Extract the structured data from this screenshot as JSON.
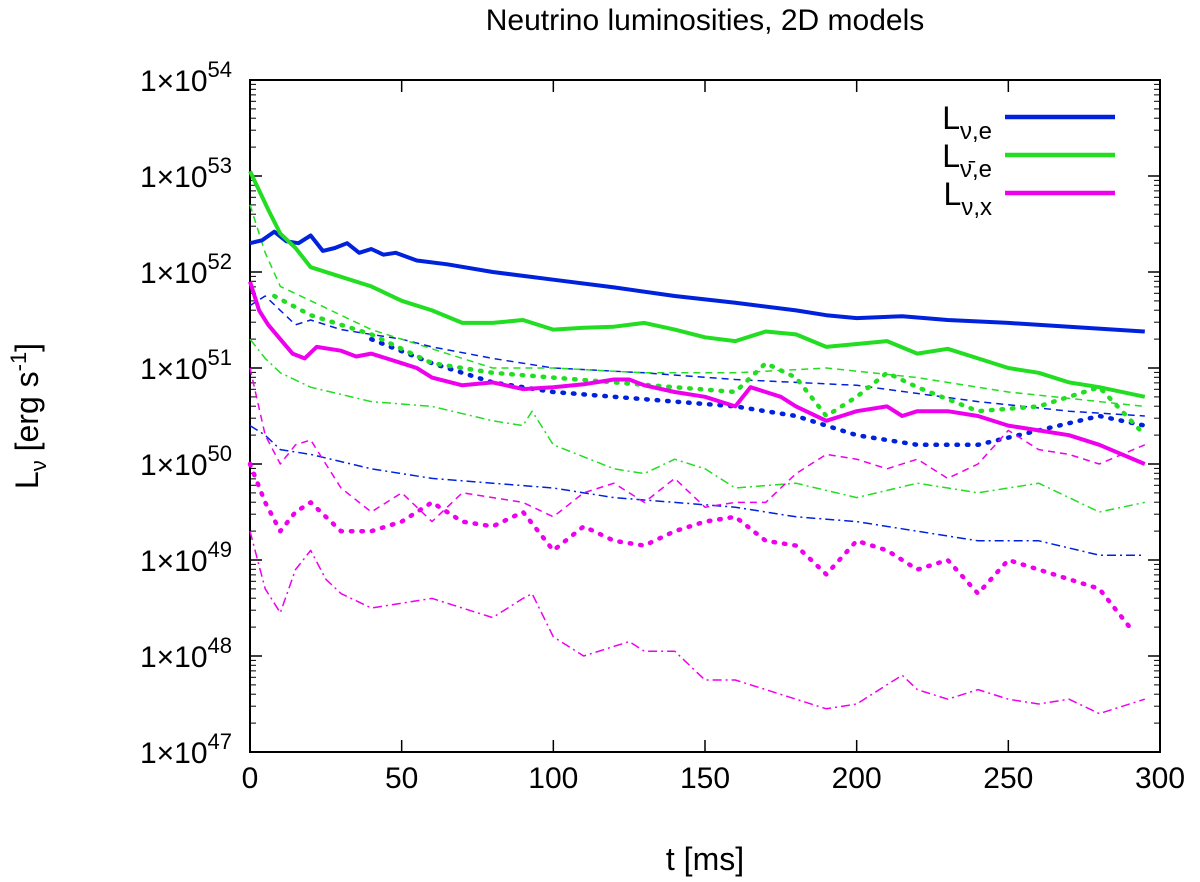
{
  "chart_data": {
    "type": "line",
    "title": "Neutrino luminosities, 2D models",
    "xlabel": "t [ms]",
    "ylabel": "L_ν [erg s^-1]",
    "xlim": [
      0,
      300
    ],
    "ylim_log10": [
      47,
      54
    ],
    "x_ticks": [
      0,
      50,
      100,
      150,
      200,
      250,
      300
    ],
    "x_tick_labels": [
      "0",
      "50",
      "100",
      "150",
      "200",
      "250",
      "300"
    ],
    "y_ticks_exp": [
      47,
      48,
      49,
      50,
      51,
      52,
      53,
      54
    ],
    "y_tick_mantissa": "1×10",
    "y_tick_exponents": [
      "47",
      "48",
      "49",
      "50",
      "51",
      "52",
      "53",
      "54"
    ],
    "legend": {
      "position": "top-right",
      "entries": [
        {
          "base": "L",
          "sub": "ν,e",
          "color": "#0022dd"
        },
        {
          "base": "L",
          "sub": "ν̄,e",
          "color": "#22dd22"
        },
        {
          "base": "L",
          "sub": "ν,x",
          "color": "#ee00ee"
        }
      ]
    },
    "colors": {
      "blue": "#0022dd",
      "green": "#22dd22",
      "magenta": "#ee00ee"
    },
    "series": [
      {
        "name": "L_nu_e solid",
        "color": "#0022dd",
        "style": "solid",
        "x": [
          0,
          4,
          8,
          12,
          16,
          20,
          24,
          28,
          32,
          36,
          40,
          44,
          48,
          55,
          65,
          80,
          100,
          120,
          140,
          160,
          180,
          190,
          200,
          215,
          230,
          250,
          270,
          295
        ],
        "log10": [
          52.3,
          52.33,
          52.42,
          52.32,
          52.3,
          52.38,
          52.22,
          52.25,
          52.3,
          52.2,
          52.24,
          52.18,
          52.2,
          52.12,
          52.08,
          52.0,
          51.92,
          51.84,
          51.75,
          51.68,
          51.6,
          51.55,
          51.52,
          51.54,
          51.5,
          51.47,
          51.43,
          51.38
        ]
      },
      {
        "name": "L_nubar_e solid",
        "color": "#22dd22",
        "style": "solid",
        "x": [
          0,
          3,
          6,
          10,
          15,
          20,
          30,
          40,
          50,
          60,
          70,
          80,
          90,
          100,
          110,
          120,
          130,
          140,
          150,
          160,
          170,
          180,
          190,
          200,
          210,
          220,
          230,
          240,
          250,
          260,
          270,
          280,
          295
        ],
        "log10": [
          53.05,
          52.85,
          52.65,
          52.4,
          52.25,
          52.05,
          51.95,
          51.85,
          51.7,
          51.6,
          51.47,
          51.47,
          51.5,
          51.4,
          51.42,
          51.43,
          51.47,
          51.4,
          51.32,
          51.28,
          51.38,
          51.35,
          51.22,
          51.25,
          51.28,
          51.15,
          51.2,
          51.1,
          51.0,
          50.95,
          50.85,
          50.8,
          50.7
        ]
      },
      {
        "name": "L_nu_x solid",
        "color": "#ee00ee",
        "style": "solid",
        "x": [
          0,
          3,
          6,
          10,
          14,
          18,
          22,
          26,
          30,
          35,
          40,
          45,
          50,
          55,
          60,
          70,
          80,
          90,
          100,
          110,
          120,
          125,
          130,
          140,
          150,
          160,
          165,
          170,
          175,
          180,
          190,
          195,
          200,
          210,
          215,
          220,
          230,
          240,
          250,
          260,
          270,
          280,
          295
        ],
        "log10": [
          51.9,
          51.6,
          51.45,
          51.3,
          51.15,
          51.1,
          51.22,
          51.2,
          51.18,
          51.12,
          51.15,
          51.1,
          51.05,
          51.0,
          50.9,
          50.82,
          50.85,
          50.78,
          50.8,
          50.83,
          50.88,
          50.88,
          50.82,
          50.75,
          50.7,
          50.6,
          50.8,
          50.75,
          50.7,
          50.6,
          50.45,
          50.5,
          50.55,
          50.6,
          50.5,
          50.55,
          50.55,
          50.5,
          50.4,
          50.35,
          50.3,
          50.2,
          50.0
        ]
      },
      {
        "name": "L_nu_e dashed",
        "color": "#0022dd",
        "style": "dashed",
        "x": [
          0,
          5,
          10,
          15,
          20,
          30,
          40,
          50,
          60,
          80,
          100,
          130,
          160,
          200,
          240,
          270,
          295
        ],
        "log10": [
          51.65,
          51.75,
          51.6,
          51.45,
          51.5,
          51.4,
          51.35,
          51.3,
          51.22,
          51.1,
          51.0,
          50.95,
          50.88,
          50.82,
          50.65,
          50.55,
          50.5
        ]
      },
      {
        "name": "L_nu_e dotted",
        "color": "#0022dd",
        "style": "dotted",
        "x": [
          40,
          60,
          80,
          100,
          120,
          140,
          160,
          180,
          200,
          220,
          240,
          260,
          280,
          295
        ],
        "log10": [
          51.3,
          51.05,
          50.85,
          50.75,
          50.7,
          50.65,
          50.6,
          50.5,
          50.3,
          50.2,
          50.2,
          50.35,
          50.5,
          50.4
        ]
      },
      {
        "name": "L_nu_e dash-dot",
        "color": "#0022dd",
        "style": "dashdot",
        "x": [
          0,
          5,
          10,
          20,
          40,
          60,
          80,
          100,
          120,
          140,
          160,
          180,
          200,
          220,
          240,
          260,
          280,
          295
        ],
        "log10": [
          50.4,
          50.3,
          50.15,
          50.1,
          49.95,
          49.85,
          49.8,
          49.75,
          49.65,
          49.6,
          49.55,
          49.45,
          49.4,
          49.3,
          49.2,
          49.2,
          49.05,
          49.05
        ]
      },
      {
        "name": "L_nubar_e dashed",
        "color": "#22dd22",
        "style": "dashed",
        "x": [
          0,
          5,
          10,
          20,
          30,
          40,
          50,
          60,
          70,
          80,
          100,
          130,
          160,
          190,
          220,
          250,
          280,
          295
        ],
        "log10": [
          52.7,
          52.2,
          51.85,
          51.7,
          51.55,
          51.4,
          51.3,
          51.2,
          51.1,
          51.0,
          51.0,
          50.95,
          50.95,
          51.0,
          50.9,
          50.75,
          50.65,
          50.6
        ]
      },
      {
        "name": "L_nubar_e dotted",
        "color": "#22dd22",
        "style": "dotted",
        "x": [
          8,
          20,
          40,
          60,
          80,
          100,
          120,
          140,
          160,
          170,
          180,
          190,
          200,
          210,
          220,
          240,
          260,
          280,
          295
        ],
        "log10": [
          51.75,
          51.55,
          51.35,
          51.05,
          50.95,
          50.9,
          50.85,
          50.8,
          50.75,
          51.05,
          50.9,
          50.5,
          50.7,
          50.95,
          50.8,
          50.55,
          50.6,
          50.8,
          50.3
        ]
      },
      {
        "name": "L_nubar_e dash-dot",
        "color": "#22dd22",
        "style": "dashdot",
        "x": [
          0,
          5,
          10,
          20,
          40,
          60,
          80,
          90,
          93,
          100,
          120,
          130,
          140,
          150,
          160,
          180,
          200,
          220,
          240,
          260,
          280,
          295
        ],
        "log10": [
          51.3,
          51.1,
          50.95,
          50.8,
          50.65,
          50.6,
          50.45,
          50.4,
          50.55,
          50.2,
          49.95,
          49.9,
          50.05,
          49.95,
          49.75,
          49.8,
          49.65,
          49.8,
          49.7,
          49.8,
          49.5,
          49.6
        ]
      },
      {
        "name": "L_nu_x dashed",
        "color": "#ee00ee",
        "style": "dashed",
        "x": [
          0,
          5,
          10,
          15,
          20,
          25,
          30,
          40,
          50,
          60,
          70,
          80,
          90,
          100,
          110,
          120,
          130,
          140,
          150,
          160,
          170,
          180,
          190,
          200,
          210,
          220,
          230,
          240,
          250,
          260,
          270,
          280,
          295
        ],
        "log10": [
          51.0,
          50.3,
          50.0,
          50.2,
          50.25,
          50.0,
          49.75,
          49.5,
          49.7,
          49.4,
          49.7,
          49.65,
          49.6,
          49.45,
          49.7,
          49.8,
          49.6,
          49.85,
          49.55,
          49.6,
          49.6,
          49.9,
          50.1,
          50.05,
          49.95,
          50.05,
          49.85,
          50.0,
          50.35,
          50.15,
          50.1,
          50.0,
          50.2
        ]
      },
      {
        "name": "L_nu_x dotted",
        "color": "#ee00ee",
        "style": "dotted",
        "x": [
          0,
          5,
          10,
          15,
          20,
          30,
          40,
          50,
          60,
          70,
          80,
          90,
          100,
          110,
          120,
          130,
          140,
          150,
          160,
          170,
          180,
          190,
          200,
          210,
          220,
          230,
          240,
          250,
          260,
          270,
          280,
          290
        ],
        "log10": [
          50.0,
          49.6,
          49.3,
          49.5,
          49.6,
          49.3,
          49.3,
          49.4,
          49.6,
          49.4,
          49.35,
          49.5,
          49.1,
          49.35,
          49.2,
          49.15,
          49.3,
          49.4,
          49.45,
          49.2,
          49.15,
          48.85,
          49.2,
          49.1,
          48.9,
          49.0,
          48.65,
          49.0,
          48.9,
          48.8,
          48.7,
          48.3
        ]
      },
      {
        "name": "L_nu_x dash-dot",
        "color": "#ee00ee",
        "style": "dashdot",
        "x": [
          0,
          5,
          10,
          15,
          20,
          25,
          30,
          40,
          50,
          60,
          70,
          80,
          90,
          93,
          100,
          110,
          120,
          125,
          130,
          140,
          150,
          160,
          170,
          180,
          190,
          200,
          210,
          215,
          220,
          230,
          240,
          250,
          260,
          270,
          280,
          295
        ],
        "log10": [
          49.3,
          48.7,
          48.45,
          48.9,
          49.1,
          48.8,
          48.65,
          48.5,
          48.55,
          48.6,
          48.5,
          48.4,
          48.6,
          48.65,
          48.2,
          48.0,
          48.1,
          48.15,
          48.05,
          48.05,
          47.75,
          47.75,
          47.65,
          47.55,
          47.45,
          47.5,
          47.7,
          47.8,
          47.65,
          47.55,
          47.65,
          47.55,
          47.5,
          47.55,
          47.4,
          47.55
        ]
      }
    ]
  }
}
